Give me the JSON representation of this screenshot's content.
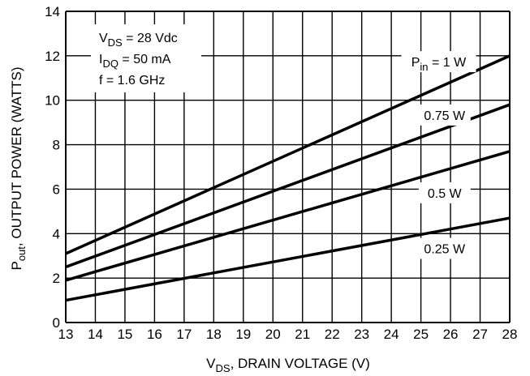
{
  "chart_data": {
    "type": "line",
    "xlabel": "V_DS, DRAIN VOLTAGE (V)",
    "ylabel": "P_out, OUTPUT POWER (WATTS)",
    "xlim": [
      13,
      28
    ],
    "ylim": [
      0,
      14
    ],
    "x_ticks": [
      13,
      14,
      15,
      16,
      17,
      18,
      19,
      20,
      21,
      22,
      23,
      24,
      25,
      26,
      27,
      28
    ],
    "y_ticks": [
      0,
      2,
      4,
      6,
      8,
      10,
      12,
      14
    ],
    "grid": true,
    "conditions": {
      "vds": {
        "main": "V",
        "sub": "DS",
        "rest": " = 28 Vdc"
      },
      "idq": {
        "main": "I",
        "sub": "DQ",
        "rest": " = 50 mA"
      },
      "freq": "f = 1.6 GHz"
    },
    "series": [
      {
        "name": "Pin = 1 W",
        "x": [
          13,
          28
        ],
        "y": [
          3.1,
          12.0
        ]
      },
      {
        "name": "0.75 W",
        "x": [
          13,
          28
        ],
        "y": [
          2.5,
          9.8
        ]
      },
      {
        "name": "0.5 W",
        "x": [
          13,
          28
        ],
        "y": [
          1.9,
          7.7
        ]
      },
      {
        "name": "0.25 W",
        "x": [
          13,
          28
        ],
        "y": [
          1.0,
          4.7
        ]
      }
    ],
    "series_labels": [
      {
        "main": "P",
        "sub": "in",
        "rest": " = 1 W",
        "at_x": 25.6,
        "at_y": 11.7
      },
      {
        "main": "",
        "sub": "",
        "rest": "0.75 W",
        "at_x": 25.8,
        "at_y": 9.3
      },
      {
        "main": "",
        "sub": "",
        "rest": "0.5 W",
        "at_x": 25.8,
        "at_y": 5.8
      },
      {
        "main": "",
        "sub": "",
        "rest": "0.25 W",
        "at_x": 25.8,
        "at_y": 3.3
      }
    ]
  }
}
